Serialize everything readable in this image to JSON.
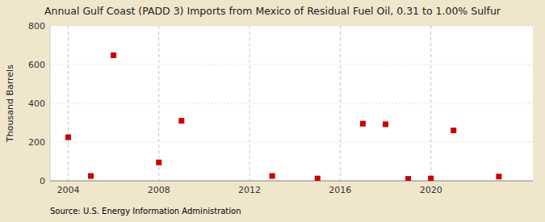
{
  "chart_data": {
    "type": "scatter",
    "title": "Annual Gulf Coast (PADD 3) Imports from Mexico of Residual Fuel Oil, 0.31 to 1.00% Sulfur",
    "ylabel": "Thousand Barrels",
    "annotations": [
      "Source: U.S. Energy Information Administration"
    ],
    "x": [
      2004,
      2005,
      2006,
      2008,
      2009,
      2013,
      2015,
      2017,
      2018,
      2019,
      2020,
      2021,
      2023
    ],
    "values": [
      225,
      25,
      648,
      95,
      310,
      25,
      12,
      295,
      292,
      10,
      12,
      260,
      22
    ],
    "xlim": [
      2003.2,
      2024.5
    ],
    "xticks": [
      2004,
      2008,
      2012,
      2016,
      2020
    ],
    "ylim": [
      0,
      800
    ],
    "yticks": [
      0,
      200,
      400,
      600,
      800
    ],
    "color": "#cc0000",
    "marker": "square",
    "grid": true
  }
}
